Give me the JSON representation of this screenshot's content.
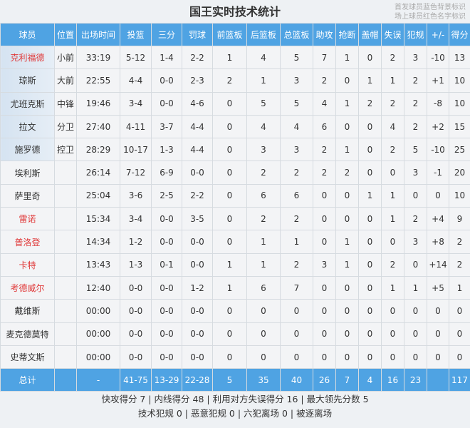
{
  "title": "国王实时技术统计",
  "legend": [
    "首发球员蓝色背景标识",
    "场上球员红色名字标识"
  ],
  "colors": {
    "header": "#4fa3e3",
    "on_court_name": "#e03a3a",
    "starter_bg": "#d5e3f1"
  },
  "columns": [
    "球员",
    "位置",
    "出场时间",
    "投篮",
    "三分",
    "罚球",
    "前篮板",
    "后篮板",
    "总篮板",
    "助攻",
    "抢断",
    "盖帽",
    "失误",
    "犯规",
    "+/-",
    "得分"
  ],
  "players": [
    {
      "starter": true,
      "on_court": true,
      "cells": [
        "克利福德",
        "小前",
        "33:19",
        "5-12",
        "1-4",
        "2-2",
        "1",
        "4",
        "5",
        "7",
        "1",
        "0",
        "2",
        "3",
        "-10",
        "13"
      ]
    },
    {
      "starter": true,
      "on_court": false,
      "cells": [
        "琼斯",
        "大前",
        "22:55",
        "4-4",
        "0-0",
        "2-3",
        "2",
        "1",
        "3",
        "2",
        "0",
        "1",
        "1",
        "2",
        "+1",
        "10"
      ]
    },
    {
      "starter": true,
      "on_court": false,
      "cells": [
        "尤班克斯",
        "中锋",
        "19:46",
        "3-4",
        "0-0",
        "4-6",
        "0",
        "5",
        "5",
        "4",
        "1",
        "2",
        "2",
        "2",
        "-8",
        "10"
      ]
    },
    {
      "starter": true,
      "on_court": false,
      "cells": [
        "拉文",
        "分卫",
        "27:40",
        "4-11",
        "3-7",
        "4-4",
        "0",
        "4",
        "4",
        "6",
        "0",
        "0",
        "4",
        "2",
        "+2",
        "15"
      ]
    },
    {
      "starter": true,
      "on_court": false,
      "cells": [
        "施罗德",
        "控卫",
        "28:29",
        "10-17",
        "1-3",
        "4-4",
        "0",
        "3",
        "3",
        "2",
        "1",
        "0",
        "2",
        "5",
        "-10",
        "25"
      ]
    },
    {
      "starter": false,
      "on_court": false,
      "cells": [
        "埃利斯",
        "",
        "26:14",
        "7-12",
        "6-9",
        "0-0",
        "0",
        "2",
        "2",
        "2",
        "2",
        "0",
        "0",
        "3",
        "-1",
        "20"
      ]
    },
    {
      "starter": false,
      "on_court": false,
      "cells": [
        "萨里奇",
        "",
        "25:04",
        "3-6",
        "2-5",
        "2-2",
        "0",
        "6",
        "6",
        "0",
        "0",
        "1",
        "1",
        "0",
        "0",
        "10"
      ]
    },
    {
      "starter": false,
      "on_court": true,
      "cells": [
        "雷诺",
        "",
        "15:34",
        "3-4",
        "0-0",
        "3-5",
        "0",
        "2",
        "2",
        "0",
        "0",
        "0",
        "1",
        "2",
        "+4",
        "9"
      ]
    },
    {
      "starter": false,
      "on_court": true,
      "cells": [
        "普洛登",
        "",
        "14:34",
        "1-2",
        "0-0",
        "0-0",
        "0",
        "1",
        "1",
        "0",
        "1",
        "0",
        "0",
        "3",
        "+8",
        "2"
      ]
    },
    {
      "starter": false,
      "on_court": true,
      "cells": [
        "卡特",
        "",
        "13:43",
        "1-3",
        "0-1",
        "0-0",
        "1",
        "1",
        "2",
        "3",
        "1",
        "0",
        "2",
        "0",
        "+14",
        "2"
      ]
    },
    {
      "starter": false,
      "on_court": true,
      "cells": [
        "考德威尔",
        "",
        "12:40",
        "0-0",
        "0-0",
        "1-2",
        "1",
        "6",
        "7",
        "0",
        "0",
        "0",
        "1",
        "1",
        "+5",
        "1"
      ]
    },
    {
      "starter": false,
      "on_court": false,
      "cells": [
        "戴维斯",
        "",
        "00:00",
        "0-0",
        "0-0",
        "0-0",
        "0",
        "0",
        "0",
        "0",
        "0",
        "0",
        "0",
        "0",
        "0",
        "0"
      ]
    },
    {
      "starter": false,
      "on_court": false,
      "cells": [
        "麦克德莫特",
        "",
        "00:00",
        "0-0",
        "0-0",
        "0-0",
        "0",
        "0",
        "0",
        "0",
        "0",
        "0",
        "0",
        "0",
        "0",
        "0"
      ]
    },
    {
      "starter": false,
      "on_court": false,
      "cells": [
        "史蒂文斯",
        "",
        "00:00",
        "0-0",
        "0-0",
        "0-0",
        "0",
        "0",
        "0",
        "0",
        "0",
        "0",
        "0",
        "0",
        "0",
        "0"
      ]
    }
  ],
  "totals": [
    "总计",
    "",
    "-",
    "41-75",
    "13-29",
    "22-28",
    "5",
    "35",
    "40",
    "26",
    "7",
    "4",
    "16",
    "23",
    "",
    "117"
  ],
  "footer": [
    "快攻得分 7 | 内线得分 48 | 利用对方失误得分 16 | 最大领先分数 5",
    "技术犯规 0 | 恶意犯规 0 | 六犯离场 0 | 被逐离场"
  ]
}
